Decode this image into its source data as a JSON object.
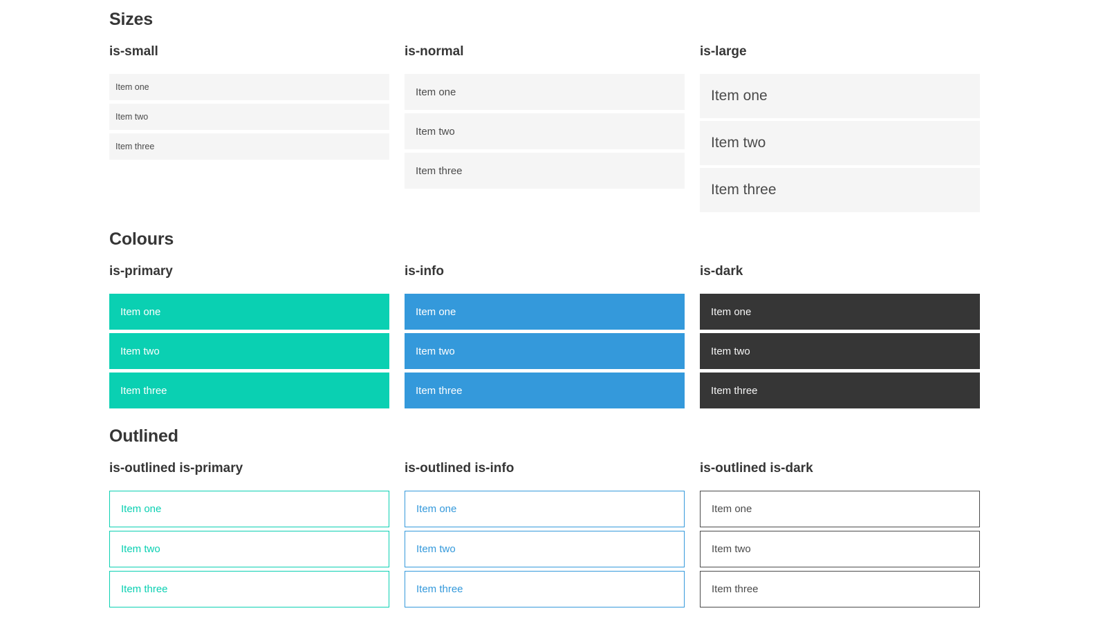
{
  "sections": [
    {
      "title": "Sizes",
      "columns": [
        {
          "label": "is-small",
          "items": [
            "Item one",
            "Item two",
            "Item three"
          ]
        },
        {
          "label": "is-normal",
          "items": [
            "Item one",
            "Item two",
            "Item three"
          ]
        },
        {
          "label": "is-large",
          "items": [
            "Item one",
            "Item two",
            "Item three"
          ]
        }
      ]
    },
    {
      "title": "Colours",
      "columns": [
        {
          "label": "is-primary",
          "items": [
            "Item one",
            "Item two",
            "Item three"
          ]
        },
        {
          "label": "is-info",
          "items": [
            "Item one",
            "Item two",
            "Item three"
          ]
        },
        {
          "label": "is-dark",
          "items": [
            "Item one",
            "Item two",
            "Item three"
          ]
        }
      ]
    },
    {
      "title": "Outlined",
      "columns": [
        {
          "label": "is-outlined is-primary",
          "items": [
            "Item one",
            "Item two",
            "Item three"
          ]
        },
        {
          "label": "is-outlined is-info",
          "items": [
            "Item one",
            "Item two",
            "Item three"
          ]
        },
        {
          "label": "is-outlined is-dark",
          "items": [
            "Item one",
            "Item two",
            "Item three"
          ]
        }
      ]
    }
  ],
  "colors": {
    "primary": "#0ad0b2",
    "info": "#3499db",
    "dark": "#363636",
    "outlined_dark": "#4a4a4a",
    "item_background": "#f5f5f5",
    "item_text": "#4a4a4a",
    "heading_text": "#363636"
  }
}
